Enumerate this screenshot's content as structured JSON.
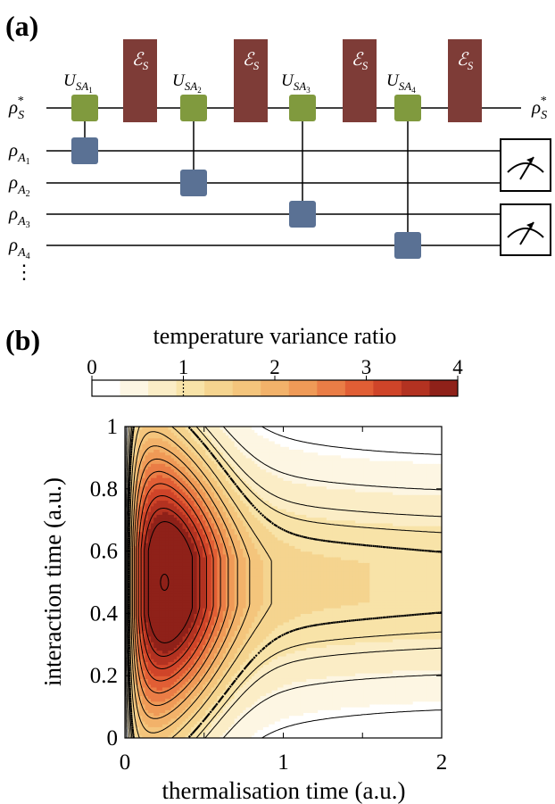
{
  "panel_a": {
    "label": "(a)",
    "system_in_base": "ρ",
    "system_in_sub": "S",
    "system_in_sup": "*",
    "system_out_base": "ρ",
    "system_out_sub": "S",
    "system_out_sup": "*",
    "ancillas": [
      {
        "base": "ρ",
        "sub": "A",
        "idx": "1"
      },
      {
        "base": "ρ",
        "sub": "A",
        "idx": "2"
      },
      {
        "base": "ρ",
        "sub": "A",
        "idx": "3"
      },
      {
        "base": "ρ",
        "sub": "A",
        "idx": "4"
      }
    ],
    "ellipsis": "⋮",
    "unitaries": [
      {
        "base": "U",
        "sub": "SA",
        "idx": "1"
      },
      {
        "base": "U",
        "sub": "SA",
        "idx": "2"
      },
      {
        "base": "U",
        "sub": "SA",
        "idx": "3"
      },
      {
        "base": "U",
        "sub": "SA",
        "idx": "4"
      }
    ],
    "channel_base": "ℰ",
    "channel_sub": "S",
    "colors": {
      "unitary": "#809a3e",
      "channel": "#7e3c37",
      "ancilla_gate": "#5a7194",
      "wire": "#000000"
    }
  },
  "panel_b": {
    "label": "(b)",
    "colorbar_title": "temperature variance ratio",
    "colorbar_ticks": [
      "0",
      "1",
      "2",
      "3",
      "4"
    ],
    "colorbar_colors": [
      "#ffffff",
      "#fdf6e3",
      "#fbedc6",
      "#f8e3a8",
      "#f5d48f",
      "#f4c57c",
      "#f2b26a",
      "#ef9a57",
      "#ea7d46",
      "#e15e35",
      "#cf4429",
      "#b33221",
      "#8f2119"
    ]
  },
  "chart_data": {
    "type": "heatmap",
    "xlabel": "thermalisation time (a.u.)",
    "ylabel": "interaction time (a.u.)",
    "xlim": [
      0,
      2
    ],
    "ylim": [
      0,
      1
    ],
    "xticks": [
      "0",
      "1",
      "2"
    ],
    "yticks": [
      "0",
      "0.2",
      "0.4",
      "0.6",
      "0.8",
      "1"
    ],
    "zlim": [
      0,
      4
    ],
    "contour_levels": [
      0.2,
      0.45,
      0.7,
      0.85,
      1.0,
      1.3,
      1.6,
      1.9,
      2.2,
      2.5,
      2.8,
      3.1,
      3.4,
      3.7
    ],
    "dotted_level": 1.0,
    "peak": {
      "x": 0.25,
      "y": 0.5,
      "value": 3.9
    }
  }
}
